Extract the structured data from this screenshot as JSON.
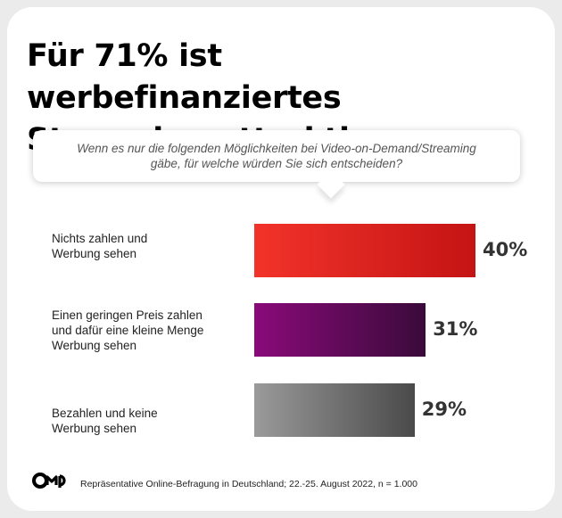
{
  "title_line1": "Für 71% ist werbefinanziertes",
  "title_line2": "Streaming attraktiv.",
  "question_line1": "Wenn es nur die folgenden Möglichkeiten bei Video-on-Demand/Streaming",
  "question_line2": "gäbe, für welche würden Sie sich entscheiden?",
  "chart_data": {
    "type": "bar",
    "orientation": "horizontal",
    "categories": [
      "Nichts zahlen und Werbung sehen",
      "Einen geringen Preis zahlen und dafür eine kleine Menge Werbung sehen",
      "Bezahlen und keine Werbung sehen"
    ],
    "category_lines": [
      [
        "Nichts zahlen und",
        "Werbung sehen"
      ],
      [
        "Einen geringen Preis zahlen",
        "und dafür eine kleine Menge",
        "Werbung sehen"
      ],
      [
        "Bezahlen und keine",
        "Werbung sehen"
      ]
    ],
    "values": [
      40,
      31,
      29
    ],
    "value_labels": [
      "40%",
      "31%",
      "29%"
    ],
    "unit": "%",
    "bar_colors": [
      [
        "#f2332a",
        "#c41414"
      ],
      [
        "#8a0a7a",
        "#3a0a3a"
      ],
      [
        "#9a9a9a",
        "#4a4a4a"
      ]
    ]
  },
  "logo_text": "OMG",
  "footer": "Repräsentative Online-Befragung in Deutschland; 22.-25. August 2022, n = 1.000"
}
